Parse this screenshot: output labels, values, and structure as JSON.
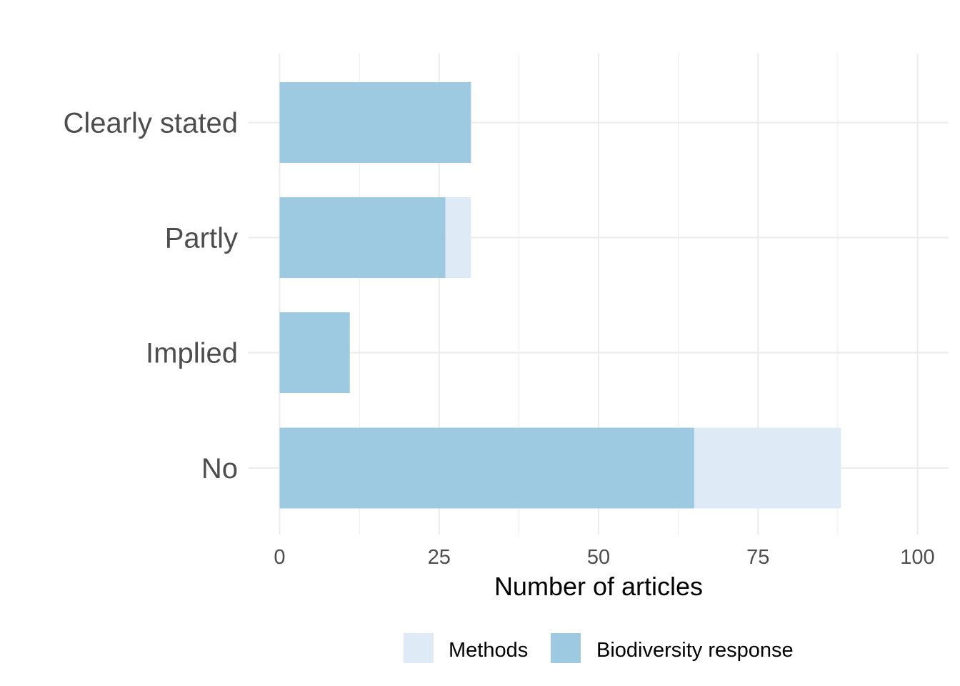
{
  "chart_data": {
    "type": "bar",
    "orientation": "horizontal",
    "stacked": true,
    "categories": [
      "Clearly stated",
      "Partly",
      "Implied",
      "No"
    ],
    "series": [
      {
        "name": "Biodiversity response",
        "values": [
          30,
          26,
          11,
          65
        ],
        "color": "#9ecae1"
      },
      {
        "name": "Methods",
        "values": [
          0,
          4,
          0,
          23
        ],
        "color": "#deebf7"
      }
    ],
    "xlabel": "Number of articles",
    "ylabel": "",
    "xlim": [
      0,
      105
    ],
    "xticks": [
      0,
      25,
      50,
      75,
      100
    ],
    "grid": true,
    "legend": {
      "position": "bottom",
      "entries": [
        {
          "label": "Methods",
          "color": "#deebf7"
        },
        {
          "label": "Biodiversity response",
          "color": "#9ecae1"
        }
      ]
    }
  }
}
